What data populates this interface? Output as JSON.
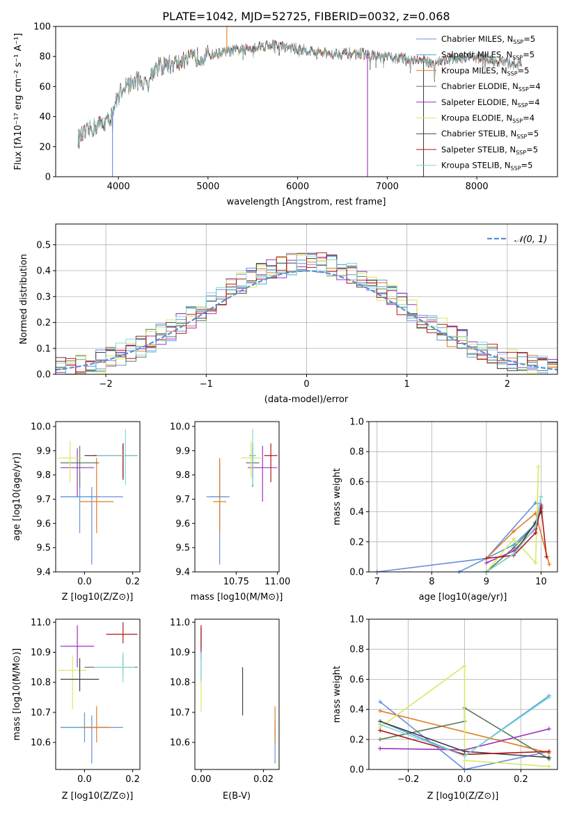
{
  "figure": {
    "suptitle": "PLATE=1042, MJD=52725, FIBERID=0032, z=0.068",
    "model_colors": [
      "#6a8be0",
      "#5a9ad8",
      "#e07c20",
      "#5a7a5a",
      "#9b30c0",
      "#d8e860",
      "#404040",
      "#b01818",
      "#80d8d8"
    ],
    "model_names": [
      "Chabrier MILES",
      "Salpeter MILES",
      "Kroupa MILES",
      "Chabrier ELODIE",
      "Salpeter ELODIE",
      "Kroupa ELODIE",
      "Chabrier STELIB",
      "Salpeter STELIB",
      "Kroupa STELIB"
    ],
    "nssp": [
      "5",
      "5",
      "5",
      "4",
      "4",
      "4",
      "5",
      "5",
      "5"
    ],
    "nssp_prefix": ", N",
    "nssp_sub": "SSP",
    "nssp_eq": "="
  },
  "chart_data": [
    {
      "id": "spectrum",
      "type": "line",
      "xlabel": "wavelength [Angstrom, rest frame]",
      "ylabel": "Flux [fλ10⁻¹⁷ erg cm⁻² s⁻¹ A⁻¹]",
      "xlim": [
        3300,
        8900
      ],
      "ylim": [
        0,
        100
      ],
      "xticks": [
        4000,
        5000,
        6000,
        7000,
        8000
      ],
      "yticks": [
        0,
        20,
        40,
        60,
        80,
        100
      ],
      "legend": "top-right",
      "continuum": {
        "x": [
          3550,
          3700,
          3800,
          3900,
          3950,
          4050,
          4150,
          4250,
          4300,
          4400,
          4500,
          4700,
          4900,
          5100,
          5300,
          5500,
          5700,
          5900,
          6100,
          6300,
          6500,
          6700,
          6900,
          7100,
          7300,
          7500,
          7700,
          7900,
          8100,
          8300,
          8500
        ],
        "y": [
          25,
          32,
          35,
          38,
          46,
          60,
          62,
          65,
          60,
          72,
          74,
          76,
          80,
          82,
          84,
          86,
          88,
          86,
          84,
          82,
          82,
          82,
          80,
          79,
          78,
          76,
          78,
          80,
          78,
          76,
          75
        ]
      },
      "absorption_lines": [
        {
          "x": 3934,
          "y": 0
        },
        {
          "x": 5210,
          "y": 100
        },
        {
          "x": 6780,
          "y": 0
        },
        {
          "x": 7405,
          "y": 0
        }
      ]
    },
    {
      "id": "residuals",
      "type": "histogram",
      "xlabel": "(data-model)/error",
      "ylabel": "Normed distribution",
      "xlim": [
        -2.5,
        2.5
      ],
      "ylim": [
        0,
        0.58
      ],
      "xticks": [
        -2,
        -1,
        0,
        1,
        2
      ],
      "yticks": [
        0.0,
        0.1,
        0.2,
        0.3,
        0.4,
        0.5
      ],
      "grid": true,
      "bin_width": 0.1,
      "reference": {
        "name": "N(0,1)",
        "mu": 0,
        "sigma": 1
      },
      "legend": "top-right"
    },
    {
      "id": "age_vs_Z",
      "type": "errorbar",
      "xlabel": "Z [log10(Z/Z⊙)]",
      "ylabel": "age  [log10(age/yr)]",
      "xlim": [
        -0.12,
        0.23
      ],
      "ylim": [
        9.4,
        10.02
      ],
      "xticks": [
        0.0,
        0.2
      ],
      "yticks": [
        9.4,
        9.5,
        9.6,
        9.7,
        9.8,
        9.9,
        10.0
      ],
      "points": [
        {
          "x": 0.03,
          "y": 9.71,
          "xerr": [
            0.13,
            0.13
          ],
          "yerr": [
            0.28,
            0.04
          ]
        },
        {
          "x": -0.02,
          "y": 9.71,
          "xerr": [
            0.08,
            0.08
          ],
          "yerr": [
            0.15,
            0.1
          ]
        },
        {
          "x": 0.05,
          "y": 9.69,
          "xerr": [
            0.07,
            0.07
          ],
          "yerr": [
            0.13,
            0.18
          ]
        },
        {
          "x": -0.02,
          "y": 9.85,
          "xerr": [
            0.08,
            0.08
          ],
          "yerr": [
            0.1,
            0.07
          ]
        },
        {
          "x": -0.03,
          "y": 9.83,
          "xerr": [
            0.07,
            0.07
          ],
          "yerr": [
            0.12,
            0.08
          ]
        },
        {
          "x": -0.06,
          "y": 9.87,
          "xerr": [
            0.05,
            0.05
          ],
          "yerr": [
            0.1,
            0.07
          ]
        },
        {
          "x": 0.16,
          "y": 9.88,
          "xerr": [
            0.16,
            0.06
          ],
          "yerr": [
            0.1,
            0.05
          ]
        },
        {
          "x": 0.16,
          "y": 9.88,
          "xerr": [
            0.12,
            0.06
          ],
          "yerr": [
            0.09,
            0.05
          ]
        },
        {
          "x": 0.17,
          "y": 9.88,
          "xerr": [
            0.12,
            0.05
          ],
          "yerr": [
            0.12,
            0.11
          ]
        }
      ]
    },
    {
      "id": "age_vs_mass",
      "type": "errorbar",
      "xlabel": "mass [log10(M/M⊙)]",
      "ylabel": "",
      "xlim": [
        10.5,
        11.01
      ],
      "ylim": [
        9.4,
        10.02
      ],
      "xticks": [
        10.75,
        11.0
      ],
      "yticks": [
        9.4,
        9.5,
        9.6,
        9.7,
        9.8,
        9.9,
        10.0
      ],
      "points": [
        {
          "x": 10.65,
          "y": 9.71,
          "xerr": [
            0.08,
            0.06
          ],
          "yerr": [
            0.28,
            0.15
          ]
        },
        {
          "x": 10.65,
          "y": 9.71,
          "xerr": [
            0.06,
            0.04
          ],
          "yerr": [
            0.15,
            0.15
          ]
        },
        {
          "x": 10.65,
          "y": 9.69,
          "xerr": [
            0.04,
            0.04
          ],
          "yerr": [
            0.13,
            0.18
          ]
        },
        {
          "x": 10.85,
          "y": 9.85,
          "xerr": [
            0.04,
            0.04
          ],
          "yerr": [
            0.1,
            0.07
          ]
        },
        {
          "x": 10.91,
          "y": 9.83,
          "xerr": [
            0.09,
            0.09
          ],
          "yerr": [
            0.14,
            0.09
          ]
        },
        {
          "x": 10.84,
          "y": 9.87,
          "xerr": [
            0.06,
            0.06
          ],
          "yerr": [
            0.08,
            0.07
          ]
        },
        {
          "x": 10.85,
          "y": 9.88,
          "xerr": [
            0.02,
            0.02
          ],
          "yerr": [
            0.1,
            0.05
          ]
        },
        {
          "x": 10.96,
          "y": 9.88,
          "xerr": [
            0.04,
            0.04
          ],
          "yerr": [
            0.11,
            0.05
          ]
        },
        {
          "x": 10.85,
          "y": 9.88,
          "xerr": [
            0.02,
            0.02
          ],
          "yerr": [
            0.12,
            0.11
          ]
        }
      ]
    },
    {
      "id": "weight_vs_age",
      "type": "line",
      "xlabel": "age  [log10(age/yr)]",
      "ylabel": "mass weight",
      "xlim": [
        6.85,
        10.3
      ],
      "ylim": [
        0,
        1.0
      ],
      "xticks": [
        7,
        8,
        9,
        10
      ],
      "yticks": [
        0.0,
        0.2,
        0.4,
        0.6,
        0.8,
        1.0
      ],
      "grid": true,
      "series": [
        {
          "x": [
            7.0,
            9.0,
            9.9,
            10.0
          ],
          "values": [
            0.0,
            0.09,
            0.46,
            0.45
          ]
        },
        {
          "x": [
            8.5,
            9.0,
            9.5,
            9.9,
            10.0
          ],
          "values": [
            0.0,
            0.09,
            0.18,
            0.32,
            0.5
          ]
        },
        {
          "x": [
            9.0,
            9.5,
            9.9,
            10.15
          ],
          "values": [
            0.09,
            0.27,
            0.39,
            0.05
          ]
        },
        {
          "x": [
            9.0,
            9.5,
            9.9,
            10.0
          ],
          "values": [
            0.0,
            0.16,
            0.32,
            0.42
          ]
        },
        {
          "x": [
            9.0,
            9.5,
            9.9,
            10.0
          ],
          "values": [
            0.06,
            0.14,
            0.29,
            0.43
          ]
        },
        {
          "x": [
            9.0,
            9.5,
            9.9,
            9.95
          ],
          "values": [
            0.0,
            0.22,
            0.06,
            0.7
          ]
        },
        {
          "x": [
            9.0,
            9.5,
            9.9,
            10.0
          ],
          "values": [
            0.0,
            0.12,
            0.33,
            0.4
          ]
        },
        {
          "x": [
            9.0,
            9.5,
            9.9,
            10.0,
            10.1
          ],
          "values": [
            0.09,
            0.11,
            0.26,
            0.44,
            0.1
          ]
        },
        {
          "x": [
            9.0,
            9.5,
            9.9,
            10.0
          ],
          "values": [
            0.0,
            0.12,
            0.3,
            0.5
          ]
        }
      ]
    },
    {
      "id": "mass_vs_Z",
      "type": "errorbar",
      "xlabel": "Z [log10(Z/Z⊙)]",
      "ylabel": "mass [log10(M/M⊙)]",
      "xlim": [
        -0.12,
        0.23
      ],
      "ylim": [
        10.51,
        11.01
      ],
      "xticks": [
        0.0,
        0.2
      ],
      "yticks": [
        10.6,
        10.7,
        10.8,
        10.9,
        11.0
      ],
      "points": [
        {
          "x": 0.03,
          "y": 10.65,
          "xerr": [
            0.13,
            0.13
          ],
          "yerr": [
            0.12,
            0.04
          ]
        },
        {
          "x": 0.0,
          "y": 10.65,
          "xerr": [
            0.1,
            0.1
          ],
          "yerr": [
            0.05,
            0.05
          ]
        },
        {
          "x": 0.05,
          "y": 10.65,
          "xerr": [
            0.06,
            0.06
          ],
          "yerr": [
            0.05,
            0.07
          ]
        },
        {
          "x": 0.16,
          "y": 10.85,
          "xerr": [
            0.16,
            0.06
          ],
          "yerr": [
            0.02,
            0.04
          ]
        },
        {
          "x": -0.03,
          "y": 10.92,
          "xerr": [
            0.07,
            0.07
          ],
          "yerr": [
            0.07,
            0.07
          ]
        },
        {
          "x": -0.05,
          "y": 10.84,
          "xerr": [
            0.06,
            0.06
          ],
          "yerr": [
            0.13,
            0.05
          ]
        },
        {
          "x": -0.02,
          "y": 10.81,
          "xerr": [
            0.08,
            0.08
          ],
          "yerr": [
            0.04,
            0.07
          ]
        },
        {
          "x": 0.16,
          "y": 10.96,
          "xerr": [
            0.07,
            0.06
          ],
          "yerr": [
            0.03,
            0.04
          ]
        },
        {
          "x": 0.16,
          "y": 10.85,
          "xerr": [
            0.12,
            0.05
          ],
          "yerr": [
            0.05,
            0.05
          ]
        }
      ]
    },
    {
      "id": "mass_vs_ebv",
      "type": "errorbar",
      "xlabel": "E(B-V)",
      "ylabel": "",
      "xlim": [
        -0.002,
        0.025
      ],
      "ylim": [
        10.51,
        11.01
      ],
      "xticks": [
        0.0,
        0.02
      ],
      "yticks": [
        10.6,
        10.7,
        10.8,
        10.9,
        11.0
      ],
      "points": [
        {
          "x": 0.0237,
          "y": 10.6,
          "xerr": [
            0,
            0
          ],
          "yerr": [
            0.07,
            0.07
          ]
        },
        {
          "x": 0.0,
          "y": 10.93,
          "xerr": [
            0,
            0
          ],
          "yerr": [
            0.06,
            0.06
          ]
        },
        {
          "x": 0.0237,
          "y": 10.65,
          "xerr": [
            0,
            0
          ],
          "yerr": [
            0.05,
            0.07
          ]
        },
        {
          "x": 0.0,
          "y": 10.86,
          "xerr": [
            0,
            0
          ],
          "yerr": [
            0.05,
            0.05
          ]
        },
        {
          "x": 0.0,
          "y": 10.93,
          "xerr": [
            0,
            0
          ],
          "yerr": [
            0.05,
            0.05
          ]
        },
        {
          "x": 0.0,
          "y": 10.8,
          "xerr": [
            0,
            0
          ],
          "yerr": [
            0.1,
            0.05
          ]
        },
        {
          "x": 0.0133,
          "y": 10.77,
          "xerr": [
            0,
            0
          ],
          "yerr": [
            0.08,
            0.08
          ]
        },
        {
          "x": 0.0,
          "y": 10.95,
          "xerr": [
            0,
            0
          ],
          "yerr": [
            0.04,
            0.04
          ]
        },
        {
          "x": 0.0,
          "y": 10.85,
          "xerr": [
            0,
            0
          ],
          "yerr": [
            0.05,
            0.05
          ]
        }
      ]
    },
    {
      "id": "weight_vs_Z",
      "type": "line",
      "xlabel": "Z [log10(Z/Z⊙)]",
      "ylabel": "mass weight",
      "xlim": [
        -0.34,
        0.33
      ],
      "ylim": [
        0,
        1.0
      ],
      "xticks": [
        -0.2,
        0.0,
        0.2
      ],
      "yticks": [
        0.0,
        0.2,
        0.4,
        0.6,
        0.8,
        1.0
      ],
      "grid": true,
      "series": [
        {
          "x": [
            -0.3,
            0.0,
            0.3
          ],
          "values": [
            0.45,
            0.0,
            0.12
          ]
        },
        {
          "x": [
            -0.3,
            0.0,
            0.3
          ],
          "values": [
            0.32,
            0.09,
            0.49
          ]
        },
        {
          "x": [
            -0.3,
            0.3
          ],
          "values": [
            0.39,
            0.11
          ]
        },
        {
          "x": [
            -0.3,
            0.0,
            0.0,
            0.3
          ],
          "values": [
            0.2,
            0.32,
            0.41,
            0.07
          ]
        },
        {
          "x": [
            -0.3,
            0.0,
            0.3
          ],
          "values": [
            0.14,
            0.13,
            0.27
          ]
        },
        {
          "x": [
            -0.3,
            0.0,
            0.0,
            0.3
          ],
          "values": [
            0.28,
            0.69,
            0.06,
            0.02
          ]
        },
        {
          "x": [
            -0.3,
            0.0,
            0.3
          ],
          "values": [
            0.32,
            0.12,
            0.08
          ]
        },
        {
          "x": [
            -0.3,
            0.0,
            0.3
          ],
          "values": [
            0.26,
            0.1,
            0.12
          ]
        },
        {
          "x": [
            -0.3,
            0.0,
            0.3
          ],
          "values": [
            0.3,
            0.09,
            0.48
          ]
        }
      ]
    }
  ]
}
